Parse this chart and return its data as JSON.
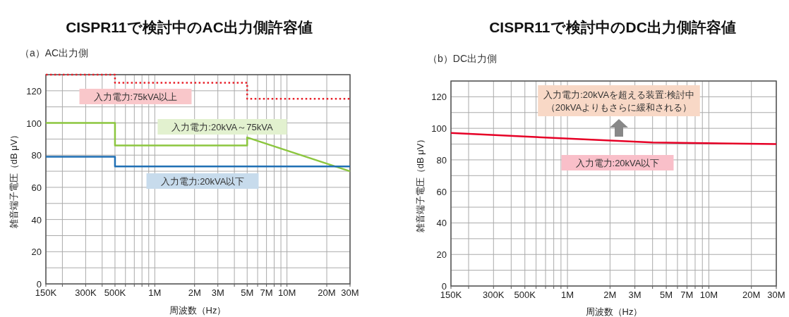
{
  "chart_data": [
    {
      "type": "line",
      "title": "CISPR11で検討中のAC出力側許容値",
      "subtitle": "（a）AC出力側",
      "xlabel": "周波数（Hz）",
      "ylabel": "雑音端子電圧（dB μV）",
      "log": "x",
      "grid": true,
      "xlim": [
        150000,
        30000000
      ],
      "xticks": [
        {
          "value": 150000,
          "label": "150K"
        },
        {
          "value": 200000,
          "label": null
        },
        {
          "value": 300000,
          "label": "300K"
        },
        {
          "value": 400000,
          "label": null
        },
        {
          "value": 500000,
          "label": "500K"
        },
        {
          "value": 600000,
          "label": null
        },
        {
          "value": 700000,
          "label": null
        },
        {
          "value": 800000,
          "label": null
        },
        {
          "value": 900000,
          "label": null
        },
        {
          "value": 1000000,
          "label": "1M"
        },
        {
          "value": 2000000,
          "label": "2M"
        },
        {
          "value": 3000000,
          "label": "3M"
        },
        {
          "value": 4000000,
          "label": null
        },
        {
          "value": 5000000,
          "label": "5M"
        },
        {
          "value": 6000000,
          "label": null
        },
        {
          "value": 7000000,
          "label": "7M"
        },
        {
          "value": 8000000,
          "label": null
        },
        {
          "value": 9000000,
          "label": null
        },
        {
          "value": 10000000,
          "label": "10M"
        },
        {
          "value": 20000000,
          "label": "20M"
        },
        {
          "value": 30000000,
          "label": "30M"
        }
      ],
      "ylim": [
        0,
        130
      ],
      "yticks": [
        0,
        {
          "value": 10,
          "label": null
        },
        20,
        {
          "value": 30,
          "label": null
        },
        40,
        {
          "value": 50,
          "label": null
        },
        60,
        {
          "value": 70,
          "label": null
        },
        80,
        {
          "value": 90,
          "label": null
        },
        100,
        {
          "value": 110,
          "label": null
        },
        120,
        {
          "value": 130,
          "label": null
        }
      ],
      "series": [
        {
          "name": "入力電力:75kVA以上",
          "color": "#e8202a",
          "line_style": "dotted",
          "x": [
            150000,
            500000,
            500000,
            5000000,
            5000000,
            30000000
          ],
          "values": [
            130,
            130,
            125,
            125,
            115,
            115
          ]
        },
        {
          "name": "入力電力:20kVA～75kVA",
          "color": "#8cc63f",
          "x": [
            150000,
            500000,
            500000,
            5000000,
            5000000,
            30000000
          ],
          "values": [
            100,
            100,
            86,
            86,
            91,
            70
          ]
        },
        {
          "name": "入力電力:20kVA以下",
          "color": "#1f6fb4",
          "x": [
            150000,
            500000,
            500000,
            30000000
          ],
          "values": [
            79,
            79,
            73,
            73
          ]
        }
      ]
    },
    {
      "type": "line",
      "title": "CISPR11で検討中のDC出力側許容値",
      "subtitle": "（b）DC出力側",
      "xlabel": "周波数（Hz）",
      "ylabel": "雑音端子電圧（dB μV）",
      "log": "x",
      "grid": true,
      "xlim": [
        150000,
        30000000
      ],
      "xticks": [
        {
          "value": 150000,
          "label": "150K"
        },
        {
          "value": 200000,
          "label": null
        },
        {
          "value": 300000,
          "label": "300K"
        },
        {
          "value": 400000,
          "label": null
        },
        {
          "value": 500000,
          "label": "500K"
        },
        {
          "value": 600000,
          "label": null
        },
        {
          "value": 700000,
          "label": null
        },
        {
          "value": 800000,
          "label": null
        },
        {
          "value": 900000,
          "label": null
        },
        {
          "value": 1000000,
          "label": "1M"
        },
        {
          "value": 2000000,
          "label": "2M"
        },
        {
          "value": 3000000,
          "label": "3M"
        },
        {
          "value": 4000000,
          "label": null
        },
        {
          "value": 5000000,
          "label": "5M"
        },
        {
          "value": 6000000,
          "label": null
        },
        {
          "value": 7000000,
          "label": "7M"
        },
        {
          "value": 8000000,
          "label": null
        },
        {
          "value": 9000000,
          "label": null
        },
        {
          "value": 10000000,
          "label": "10M"
        },
        {
          "value": 20000000,
          "label": "20M"
        },
        {
          "value": 30000000,
          "label": "30M"
        }
      ],
      "ylim": [
        0,
        130
      ],
      "yticks": [
        0,
        {
          "value": 10,
          "label": null
        },
        20,
        {
          "value": 30,
          "label": null
        },
        40,
        {
          "value": 50,
          "label": null
        },
        60,
        {
          "value": 70,
          "label": null
        },
        80,
        {
          "value": 90,
          "label": null
        },
        100,
        {
          "value": 110,
          "label": null
        },
        120,
        {
          "value": 130,
          "label": null
        }
      ],
      "annotations": [
        "入力電力:20kVAを超える装置:検討中",
        "（20kVAよりもさらに緩和される）"
      ],
      "series": [
        {
          "name": "入力電力:20kVA以下",
          "color": "#e60026",
          "x": [
            150000,
            4000000,
            30000000
          ],
          "values": [
            97,
            91,
            90
          ]
        }
      ]
    }
  ]
}
